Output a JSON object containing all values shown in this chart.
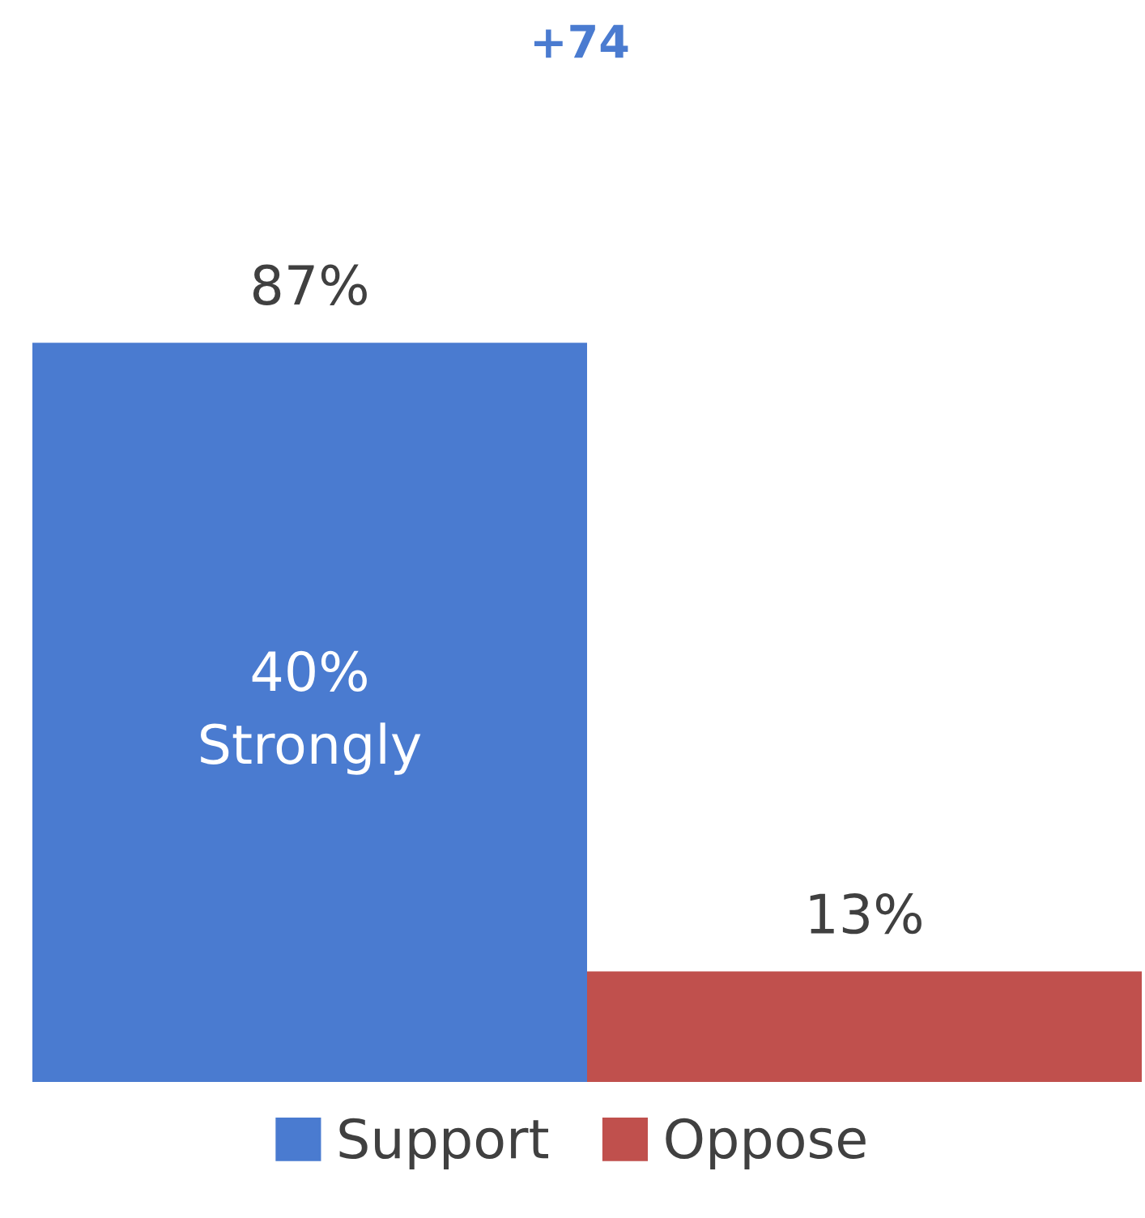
{
  "chart_data": {
    "type": "bar",
    "categories": [
      null
    ],
    "series": [
      {
        "name": "Support",
        "color": "#4a7bd0",
        "values": [
          87
        ],
        "value_labels": [
          "87%"
        ]
      },
      {
        "name": "Oppose",
        "color": "#c0504d",
        "values": [
          13
        ],
        "value_labels": [
          "13%"
        ]
      }
    ],
    "annotations": [
      "+74",
      "40%\nStrongly"
    ],
    "legend": "bottom"
  }
}
